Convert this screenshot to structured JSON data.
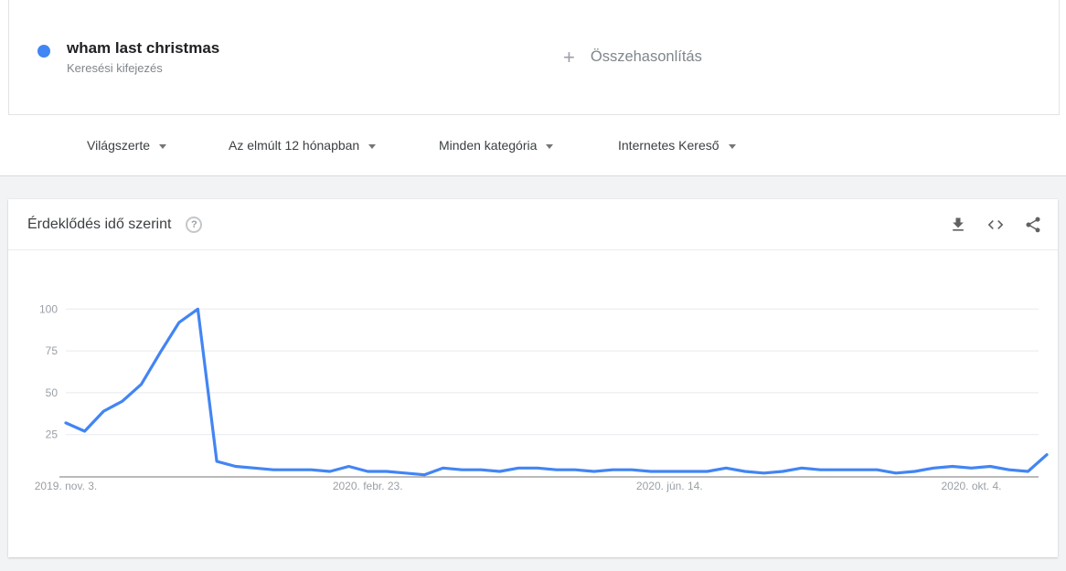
{
  "colors": {
    "accent_blue": "#4285f4",
    "background": "#f1f3f4",
    "grid": "#e8eaed",
    "axis_line": "#757575",
    "axis_text": "#9aa0a6",
    "muted_text": "#80868b",
    "dark_text": "#202124"
  },
  "term_card": {
    "term": "wham last christmas",
    "term_type": "Keresési kifejezés",
    "plus": "+",
    "compare_label": "Összehasonlítás"
  },
  "filters": {
    "geo": "Világszerte",
    "time": "Az elmúlt 12 hónapban",
    "category": "Minden kategória",
    "property": "Internetes Kereső"
  },
  "chart_card": {
    "title": "Érdeklődés idő szerint",
    "help_symbol": "?",
    "action_icons": [
      "download-icon",
      "embed-icon",
      "share-icon"
    ]
  },
  "chart_data": {
    "type": "line",
    "title": "Érdeklődés idő szerint",
    "interval": "weekly",
    "x_tick_labels": [
      "2019. nov. 3.",
      "2020. febr. 23.",
      "2020. jún. 14.",
      "2020. okt. 4."
    ],
    "x_tick_indices": [
      0,
      16,
      32,
      48
    ],
    "yticks": [
      25,
      50,
      75,
      100
    ],
    "ylim": [
      0,
      100
    ],
    "grid": true,
    "legend_position": "none",
    "series": [
      {
        "name": "wham last christmas",
        "color": "#4285f4",
        "values": [
          32,
          27,
          39,
          45,
          55,
          74,
          92,
          100,
          9,
          6,
          5,
          4,
          4,
          4,
          3,
          6,
          3,
          3,
          2,
          1,
          5,
          4,
          4,
          3,
          5,
          5,
          4,
          4,
          3,
          4,
          4,
          3,
          3,
          3,
          3,
          5,
          3,
          2,
          3,
          5,
          4,
          4,
          4,
          4,
          2,
          3,
          5,
          6,
          5,
          6,
          4,
          3,
          13
        ]
      }
    ]
  }
}
